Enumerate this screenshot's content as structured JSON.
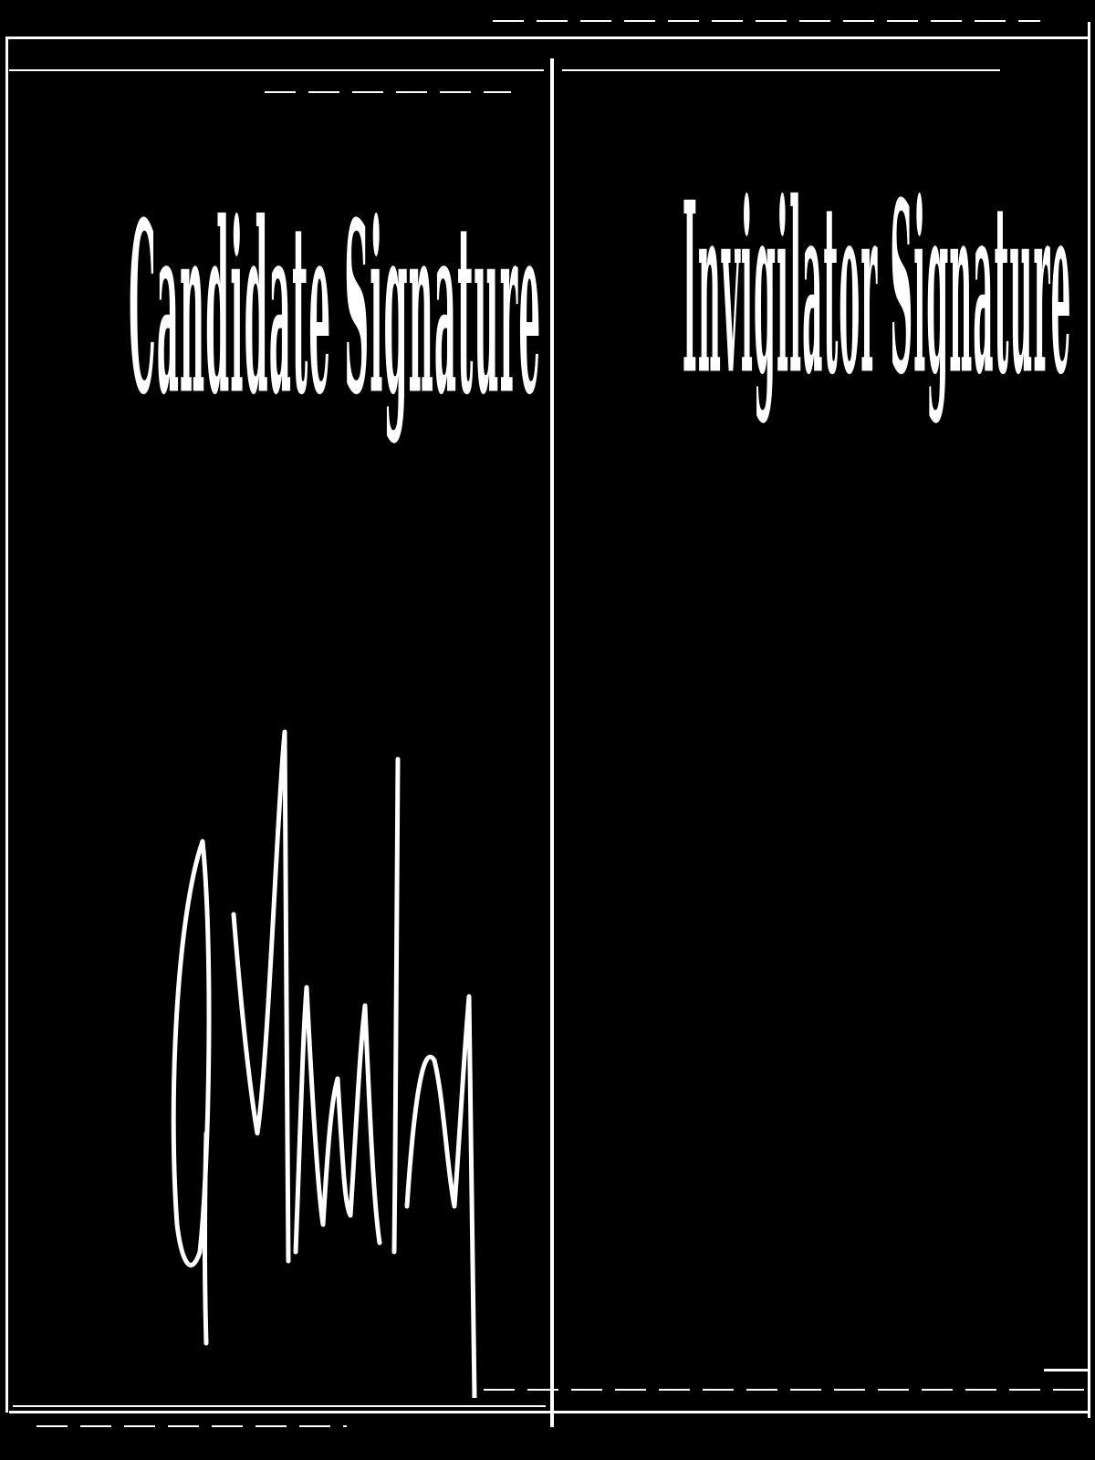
{
  "document": {
    "type": "signature-form",
    "colors": {
      "background": "#000000",
      "ink": "#ffffff"
    }
  },
  "panels": {
    "left": {
      "label": "Candidate Signature"
    },
    "right": {
      "label": "Invigilator Signature"
    }
  }
}
